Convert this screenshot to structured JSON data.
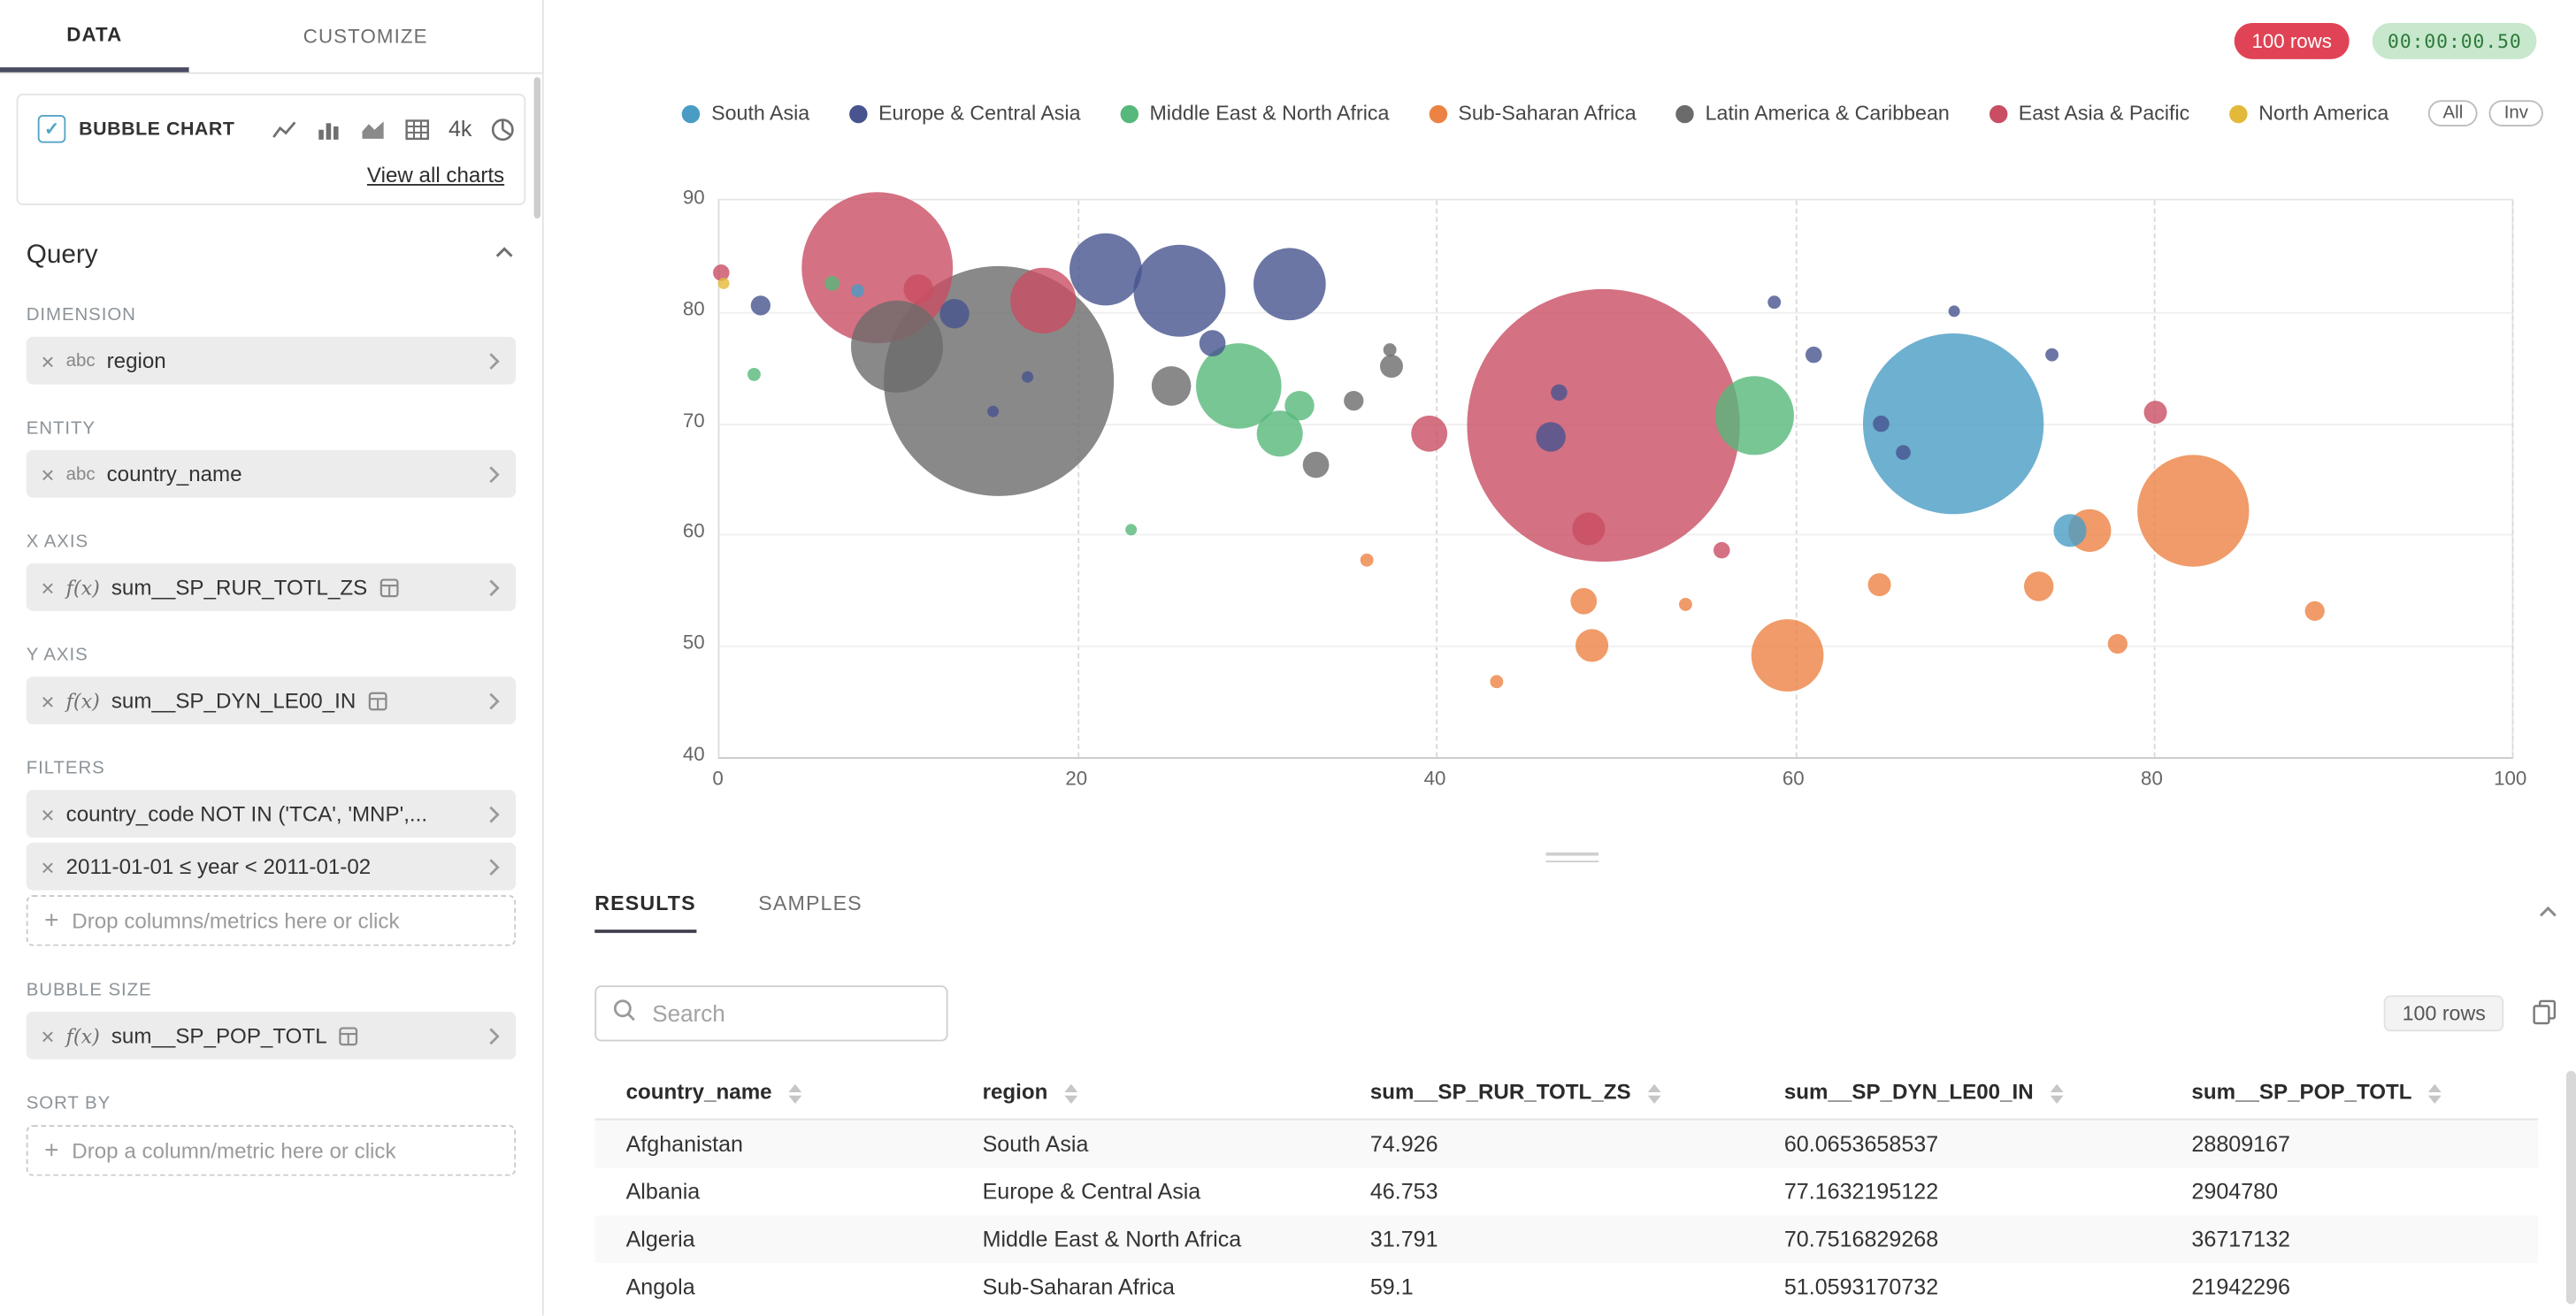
{
  "sidebar": {
    "tabs": [
      {
        "label": "DATA",
        "active": true
      },
      {
        "label": "CUSTOMIZE",
        "active": false
      }
    ],
    "viz_switcher": {
      "selected_label": "BUBBLE CHART",
      "icon_4k_label": "4k",
      "icons": [
        "line-chart",
        "bar-chart",
        "area-chart",
        "pivot-table",
        "big-number",
        "pie-chart"
      ],
      "view_all_label": "View all charts"
    },
    "query": {
      "title": "Query",
      "dimension": {
        "label": "DIMENSION",
        "prefix": "abc",
        "value": "region"
      },
      "entity": {
        "label": "ENTITY",
        "prefix": "abc",
        "value": "country_name"
      },
      "x_axis": {
        "label": "X AXIS",
        "prefix": "f(x)",
        "value": "sum__SP_RUR_TOTL_ZS"
      },
      "y_axis": {
        "label": "Y AXIS",
        "prefix": "f(x)",
        "value": "sum__SP_DYN_LE00_IN"
      },
      "filters": {
        "label": "FILTERS",
        "items": [
          "country_code NOT IN ('TCA', 'MNP',...",
          "2011-01-01 ≤ year < 2011-01-02"
        ],
        "drop_placeholder": "Drop columns/metrics here or click"
      },
      "bubble_size": {
        "label": "BUBBLE SIZE",
        "prefix": "f(x)",
        "value": "sum__SP_POP_TOTL"
      },
      "sort_by": {
        "label": "SORT BY",
        "drop_placeholder": "Drop a column/metric here or click"
      }
    }
  },
  "status": {
    "rows_badge": "100 rows",
    "timer": "00:00:00.50"
  },
  "chart_data": {
    "type": "scatter",
    "subtype": "bubble",
    "x_field": "sum__SP_RUR_TOTL_ZS",
    "y_field": "sum__SP_DYN_LE00_IN",
    "size_field": "sum__SP_POP_TOTL",
    "xlim": [
      0,
      100
    ],
    "ylim": [
      40,
      90
    ],
    "x_ticks": [
      0,
      20,
      40,
      60,
      80,
      100
    ],
    "y_ticks": [
      40,
      50,
      60,
      70,
      80,
      90
    ],
    "grid": "dashed-vertical",
    "legend_position": "top",
    "legend_buttons": [
      "All",
      "Inv"
    ],
    "series": [
      {
        "name": "South Asia",
        "color": "#4A9CC4",
        "points": [
          {
            "x": 68.8,
            "y": 69.9,
            "r": 55
          },
          {
            "x": 75.3,
            "y": 60.3,
            "r": 10
          },
          {
            "x": 7.7,
            "y": 81.9,
            "r": 4
          }
        ]
      },
      {
        "name": "Europe & Central Asia",
        "color": "#47548F",
        "points": [
          {
            "x": 21.5,
            "y": 83.8,
            "r": 22
          },
          {
            "x": 25.7,
            "y": 81.9,
            "r": 28
          },
          {
            "x": 31.8,
            "y": 82.5,
            "r": 22
          },
          {
            "x": 13.1,
            "y": 79.8,
            "r": 9
          },
          {
            "x": 2.3,
            "y": 80.6,
            "r": 6
          },
          {
            "x": 15.3,
            "y": 71.0,
            "r": 3.5
          },
          {
            "x": 17.2,
            "y": 74.1,
            "r": 3.5
          },
          {
            "x": 27.5,
            "y": 77.2,
            "r": 8
          },
          {
            "x": 46.4,
            "y": 68.8,
            "r": 9
          },
          {
            "x": 46.8,
            "y": 72.7,
            "r": 5
          },
          {
            "x": 58.8,
            "y": 80.9,
            "r": 4
          },
          {
            "x": 61.0,
            "y": 76.1,
            "r": 5
          },
          {
            "x": 64.8,
            "y": 69.9,
            "r": 5
          },
          {
            "x": 66.0,
            "y": 67.4,
            "r": 4.5
          },
          {
            "x": 68.9,
            "y": 80.1,
            "r": 3.5
          },
          {
            "x": 74.3,
            "y": 76.2,
            "r": 4
          }
        ]
      },
      {
        "name": "Middle East & North Africa",
        "color": "#57B87B",
        "points": [
          {
            "x": 29.0,
            "y": 73.4,
            "r": 26
          },
          {
            "x": 31.3,
            "y": 69.1,
            "r": 14
          },
          {
            "x": 32.4,
            "y": 71.5,
            "r": 9
          },
          {
            "x": 6.3,
            "y": 82.5,
            "r": 4.5
          },
          {
            "x": 1.9,
            "y": 74.3,
            "r": 4
          },
          {
            "x": 23.0,
            "y": 60.5,
            "r": 3.5
          },
          {
            "x": 57.7,
            "y": 70.7,
            "r": 24
          }
        ]
      },
      {
        "name": "Sub-Saharan Africa",
        "color": "#EC8243",
        "points": [
          {
            "x": 82.2,
            "y": 62.1,
            "r": 34
          },
          {
            "x": 59.6,
            "y": 49.1,
            "r": 22
          },
          {
            "x": 76.4,
            "y": 60.3,
            "r": 13
          },
          {
            "x": 48.7,
            "y": 50.0,
            "r": 10
          },
          {
            "x": 48.2,
            "y": 54.0,
            "r": 8
          },
          {
            "x": 36.1,
            "y": 57.7,
            "r": 4
          },
          {
            "x": 43.4,
            "y": 46.8,
            "r": 4
          },
          {
            "x": 53.9,
            "y": 53.7,
            "r": 4
          },
          {
            "x": 64.7,
            "y": 55.5,
            "r": 7
          },
          {
            "x": 73.6,
            "y": 55.4,
            "r": 9
          },
          {
            "x": 78.0,
            "y": 50.2,
            "r": 6
          },
          {
            "x": 89.0,
            "y": 53.1,
            "r": 6
          }
        ]
      },
      {
        "name": "Latin America & Caribbean",
        "color": "#6B6B6B",
        "points": [
          {
            "x": 15.6,
            "y": 73.8,
            "r": 70
          },
          {
            "x": 9.9,
            "y": 76.9,
            "r": 28
          },
          {
            "x": 25.2,
            "y": 73.4,
            "r": 12
          },
          {
            "x": 33.3,
            "y": 66.3,
            "r": 8
          },
          {
            "x": 35.4,
            "y": 72.0,
            "r": 6
          },
          {
            "x": 37.5,
            "y": 75.1,
            "r": 7
          },
          {
            "x": 37.4,
            "y": 76.6,
            "r": 4
          }
        ]
      },
      {
        "name": "East Asia & Pacific",
        "color": "#C94D63",
        "points": [
          {
            "x": 49.3,
            "y": 69.8,
            "r": 83
          },
          {
            "x": 8.8,
            "y": 83.9,
            "r": 46
          },
          {
            "x": 18.1,
            "y": 81.0,
            "r": 20
          },
          {
            "x": 11.1,
            "y": 82.0,
            "r": 9
          },
          {
            "x": 0.1,
            "y": 83.5,
            "r": 5
          },
          {
            "x": 39.6,
            "y": 69.0,
            "r": 11
          },
          {
            "x": 48.5,
            "y": 60.5,
            "r": 10
          },
          {
            "x": 55.9,
            "y": 58.6,
            "r": 5
          },
          {
            "x": 80.1,
            "y": 71.0,
            "r": 7
          }
        ]
      },
      {
        "name": "North America",
        "color": "#E3B93A",
        "points": [
          {
            "x": 0.2,
            "y": 82.5,
            "r": 3.5
          }
        ]
      }
    ]
  },
  "results": {
    "tabs": [
      "RESULTS",
      "SAMPLES"
    ],
    "search_placeholder": "Search",
    "rows_badge": "100 rows",
    "columns": [
      "country_name",
      "region",
      "sum__SP_RUR_TOTL_ZS",
      "sum__SP_DYN_LE00_IN",
      "sum__SP_POP_TOTL"
    ],
    "rows": [
      [
        "Afghanistan",
        "South Asia",
        "74.926",
        "60.0653658537",
        "28809167"
      ],
      [
        "Albania",
        "Europe & Central Asia",
        "46.753",
        "77.1632195122",
        "2904780"
      ],
      [
        "Algeria",
        "Middle East & North Africa",
        "31.791",
        "70.7516829268",
        "36717132"
      ],
      [
        "Angola",
        "Sub-Saharan Africa",
        "59.1",
        "51.0593170732",
        "21942296"
      ]
    ]
  }
}
